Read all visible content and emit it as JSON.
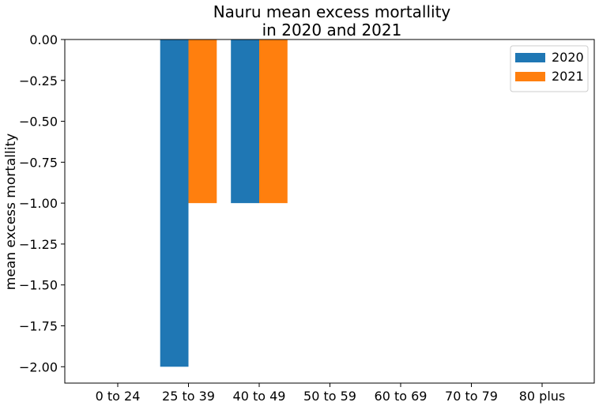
{
  "chart_data": {
    "type": "bar",
    "title_lines": [
      "Nauru mean excess mortallity",
      "in 2020 and 2021"
    ],
    "xlabel": "",
    "ylabel": "mean excess mortallity",
    "categories": [
      "0 to 24",
      "25 to 39",
      "40 to 49",
      "50 to 59",
      "60 to 69",
      "70 to 79",
      "80 plus"
    ],
    "series": [
      {
        "name": "2020",
        "color": "#1f77b4",
        "values": [
          0,
          -2,
          -1,
          0,
          0,
          0,
          0
        ]
      },
      {
        "name": "2021",
        "color": "#ff7f0e",
        "values": [
          0,
          -1,
          -1,
          0,
          0,
          0,
          0
        ]
      }
    ],
    "ylim": [
      -2.1,
      0.0
    ],
    "yticks": [
      0.0,
      -0.25,
      -0.5,
      -0.75,
      -1.0,
      -1.25,
      -1.5,
      -1.75,
      -2.0
    ],
    "ytick_labels": [
      "0.00",
      "−0.25",
      "−0.50",
      "−0.75",
      "−1.00",
      "−1.25",
      "−1.50",
      "−1.75",
      "−2.00"
    ],
    "legend_position": "top-right",
    "grid": false
  }
}
